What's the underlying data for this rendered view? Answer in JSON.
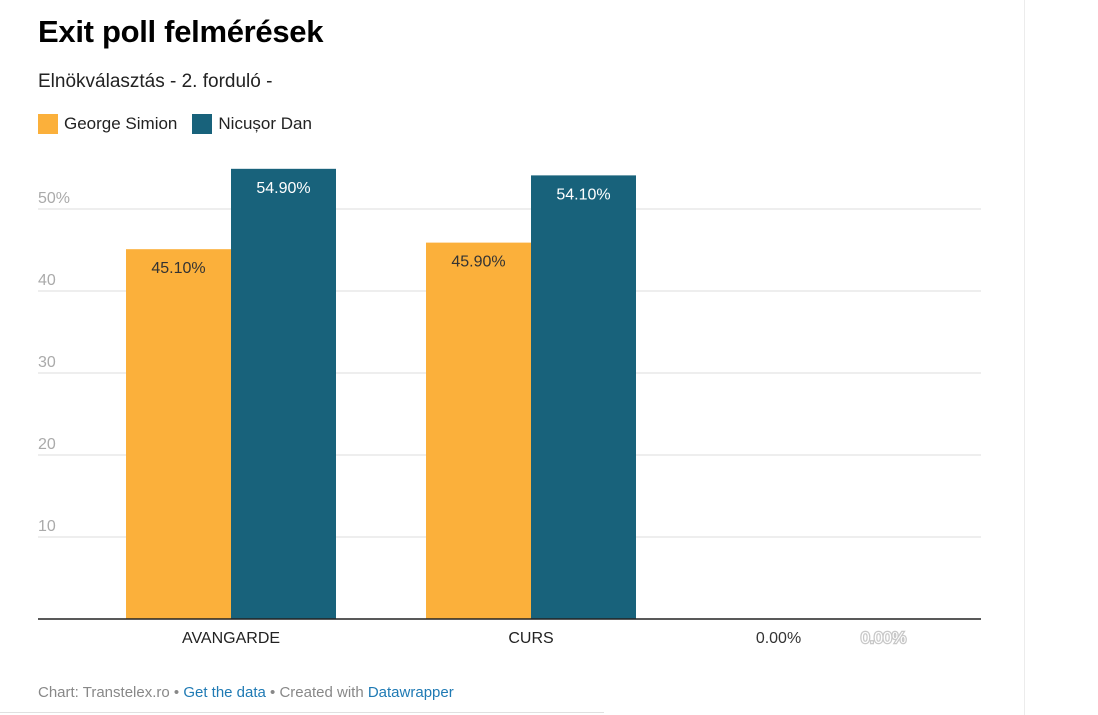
{
  "title": "Exit poll felmérések",
  "subtitle": "Elnökválasztás - 2. forduló -",
  "footer": {
    "chart_credit": "Chart: Transtelex.ro",
    "sep1": " • ",
    "get_data": "Get the data",
    "sep2": " • Created with ",
    "datawrapper": "Datawrapper"
  },
  "colors": {
    "george": "#fbb03b",
    "nicusor": "#18627b"
  },
  "chart_data": {
    "type": "bar",
    "categories": [
      "AVANGARDE",
      "CURS",
      ""
    ],
    "series": [
      {
        "name": "George Simion",
        "values": [
          45.1,
          45.9,
          0
        ],
        "labels": [
          "45.10%",
          "45.90%",
          "0.00%"
        ],
        "color": "#fbb03b"
      },
      {
        "name": "Nicușor Dan",
        "values": [
          54.9,
          54.1,
          0
        ],
        "labels": [
          "54.90%",
          "54.10%",
          "0.00%"
        ],
        "color": "#18627b"
      }
    ],
    "yticks": [
      "10",
      "20",
      "30",
      "40",
      "50%"
    ],
    "ylim": [
      0,
      55
    ],
    "xlabel": "",
    "ylabel": "",
    "grid": true,
    "legend": "top-left"
  }
}
